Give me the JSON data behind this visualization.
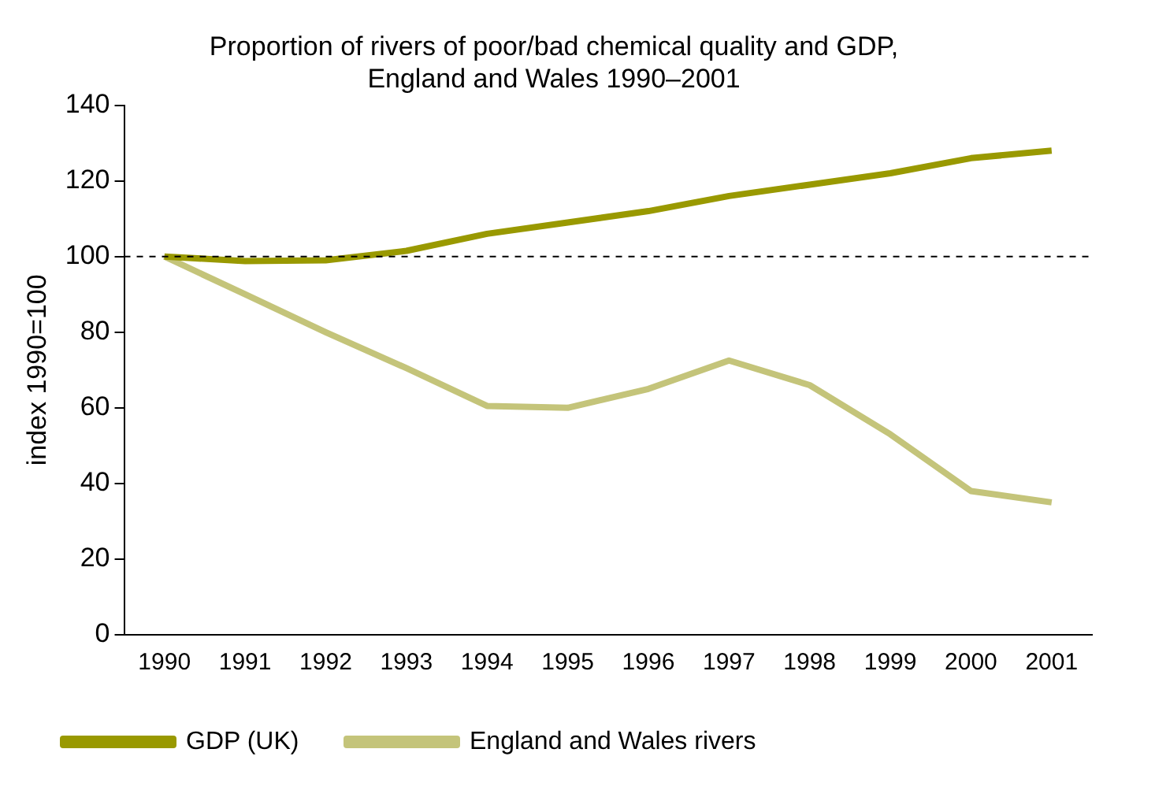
{
  "chart_data": {
    "type": "line",
    "title": "Proportion of rivers of poor/bad chemical quality and GDP, England and Wales 1990–2001",
    "ylabel": "index 1990=100",
    "categories": [
      "1990",
      "1991",
      "1992",
      "1993",
      "1994",
      "1995",
      "1996",
      "1997",
      "1998",
      "1999",
      "2000",
      "2001"
    ],
    "series": [
      {
        "name": "GDP (UK)",
        "color": "#999900",
        "values": [
          100,
          98.8,
          99,
          101.5,
          106,
          109,
          112,
          116,
          119,
          122,
          126,
          128
        ]
      },
      {
        "name": "England and Wales rivers",
        "color": "#c4c47a",
        "values": [
          100,
          90,
          80,
          70.5,
          60.5,
          60,
          65,
          72.5,
          66,
          53,
          38,
          35
        ]
      }
    ],
    "ylim": [
      0,
      140
    ],
    "yticks": [
      0,
      20,
      40,
      60,
      80,
      100,
      120,
      140
    ],
    "ref_lines": [
      {
        "axis": "y",
        "value": 100,
        "line_style": "dashed",
        "color": "#000000"
      }
    ],
    "legend": "bottom",
    "marker": "none",
    "line_style": "solid"
  }
}
